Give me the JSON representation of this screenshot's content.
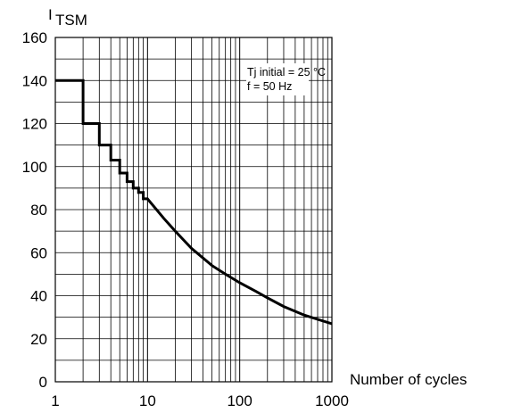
{
  "chart_data": {
    "type": "line",
    "title": "",
    "ylabel_main": "I",
    "ylabel_sub": "TSM",
    "xlabel": "Number of cycles",
    "x_scale": "log",
    "xlim": [
      1,
      1000
    ],
    "ylim": [
      0,
      160
    ],
    "x_ticks": [
      1,
      10,
      100,
      1000
    ],
    "x_tick_labels": [
      "1",
      "10",
      "100",
      "1000"
    ],
    "y_ticks": [
      0,
      20,
      40,
      60,
      80,
      100,
      120,
      140,
      160
    ],
    "y_tick_labels": [
      "0",
      "20",
      "40",
      "60",
      "80",
      "100",
      "120",
      "140",
      "160"
    ],
    "grid": true,
    "annotation_lines": [
      "Tj initial = 25 °C",
      "f =  50 Hz"
    ],
    "annotation_position": "top-right",
    "series": [
      {
        "x": [
          1,
          2,
          2,
          3,
          3,
          4,
          4,
          5,
          5,
          6,
          6,
          7,
          7,
          8,
          8,
          9,
          9,
          10,
          15,
          20,
          30,
          50,
          70,
          100,
          150,
          200,
          300,
          500,
          700,
          1000
        ],
        "values": [
          140,
          140,
          120,
          120,
          110,
          110,
          103,
          103,
          97,
          97,
          93,
          93,
          90,
          90,
          88,
          88,
          85,
          85,
          76,
          70,
          62,
          54,
          50,
          46,
          42,
          39,
          35,
          31,
          29,
          27
        ]
      }
    ]
  }
}
